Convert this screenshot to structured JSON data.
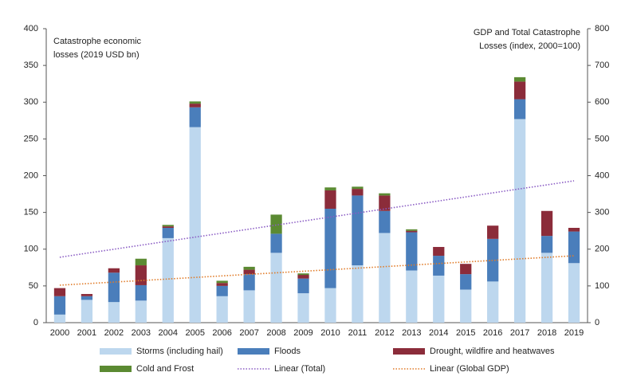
{
  "chart_data": {
    "type": "bar",
    "stacked": true,
    "y_label": [
      "Catastrophe economic",
      "losses (2019 USD bn)"
    ],
    "y2_label": [
      "GDP and Total Catastrophe",
      "Losses (index, 2000=100)"
    ],
    "categories": [
      "2000",
      "2001",
      "2002",
      "2003",
      "2004",
      "2005",
      "2006",
      "2007",
      "2008",
      "2009",
      "2010",
      "2011",
      "2012",
      "2013",
      "2014",
      "2015",
      "2016",
      "2017",
      "2018",
      "2019"
    ],
    "series": [
      {
        "name": "Storms (including hail)",
        "color": "#bdd7ee",
        "values": [
          11,
          31,
          28,
          30,
          115,
          266,
          36,
          44,
          95,
          40,
          47,
          78,
          122,
          71,
          64,
          45,
          56,
          277,
          95,
          81
        ]
      },
      {
        "name": "Floods",
        "color": "#4a7ebb",
        "values": [
          25,
          5,
          40,
          21,
          14,
          27,
          14,
          22,
          26,
          20,
          108,
          95,
          30,
          52,
          27,
          21,
          58,
          27,
          23,
          43
        ]
      },
      {
        "name": "Drought, wildfire and heatwaves",
        "color": "#8b2c3a",
        "values": [
          11,
          3,
          6,
          27,
          2,
          5,
          4,
          6,
          0,
          5,
          25,
          9,
          21,
          2,
          12,
          14,
          18,
          24,
          34,
          5
        ]
      },
      {
        "name": "Cold and Frost",
        "color": "#5b8a32",
        "values": [
          0,
          0,
          0,
          9,
          2,
          3,
          3,
          4,
          26,
          2,
          4,
          3,
          3,
          2,
          0,
          0,
          0,
          6,
          0,
          0
        ]
      },
      {
        "name": "Linear (Total)",
        "type": "line",
        "linestyle": "dotted",
        "color": "#8a5cc4",
        "values": [
          89,
          94.5,
          99.9,
          105.4,
          110.9,
          116.4,
          121.8,
          127.3,
          132.8,
          138.3,
          143.7,
          149.2,
          154.7,
          160.2,
          165.6,
          171.1,
          176.6,
          182.1,
          187.5,
          193
        ]
      },
      {
        "name": "Linear (Global GDP)",
        "type": "line",
        "linestyle": "dotted",
        "axis": "y2",
        "color": "#e07b28",
        "values": [
          102,
          106.2,
          110.4,
          114.6,
          118.8,
          123.1,
          127.3,
          131.5,
          135.7,
          139.9,
          144.1,
          148.3,
          152.5,
          156.7,
          160.9,
          165.2,
          169.4,
          173.6,
          177.8,
          182
        ]
      }
    ],
    "ylim": [
      0,
      400
    ],
    "yticks": [
      0,
      50,
      100,
      150,
      200,
      250,
      300,
      350,
      400
    ],
    "y2lim": [
      0,
      800
    ],
    "y2ticks": [
      0,
      100,
      200,
      300,
      400,
      500,
      600,
      700,
      800
    ],
    "grid": false,
    "legend": "bottom"
  }
}
